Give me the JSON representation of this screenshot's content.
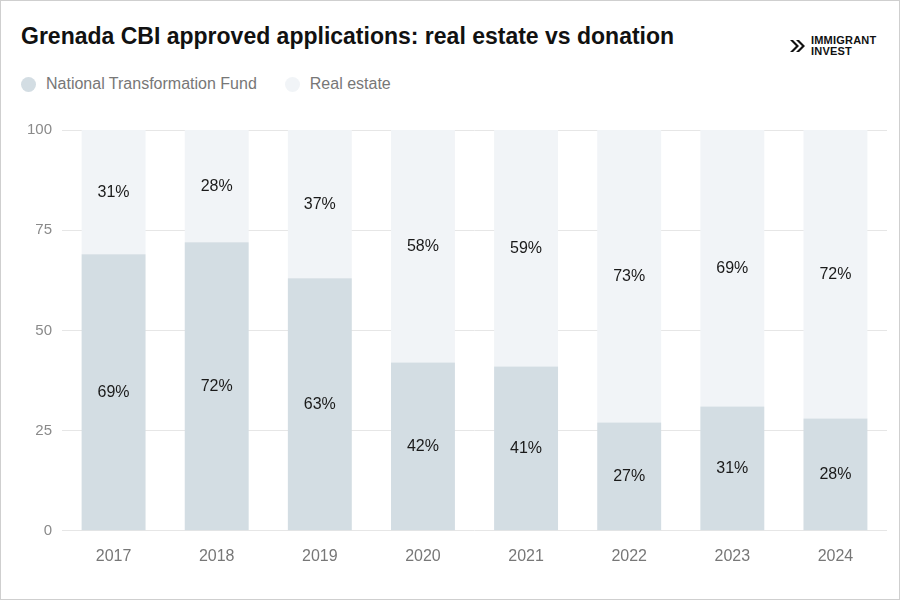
{
  "chart_data": {
    "type": "bar",
    "title": "Grenada CBI approved applications: real estate vs donation",
    "annotation": "IMMIGRANT INVEST",
    "categories": [
      "2017",
      "2018",
      "2019",
      "2020",
      "2021",
      "2022",
      "2023",
      "2024"
    ],
    "series": [
      {
        "name": "National Transformation Fund",
        "color": "#d3dde3",
        "values": [
          69,
          72,
          63,
          42,
          41,
          27,
          31,
          28
        ],
        "value_labels": [
          "69%",
          "72%",
          "63%",
          "42%",
          "41%",
          "27%",
          "31%",
          "28%"
        ]
      },
      {
        "name": "Real estate",
        "color": "#f1f4f7",
        "values": [
          31,
          28,
          37,
          58,
          59,
          73,
          69,
          72
        ],
        "value_labels": [
          "31%",
          "28%",
          "37%",
          "58%",
          "59%",
          "73%",
          "69%",
          "72%"
        ]
      }
    ],
    "ylim": [
      0,
      100
    ],
    "yticks": [
      0,
      25,
      50,
      75,
      100
    ],
    "grid": true,
    "stacked": true,
    "data_labels": true,
    "legend": "top-left"
  }
}
